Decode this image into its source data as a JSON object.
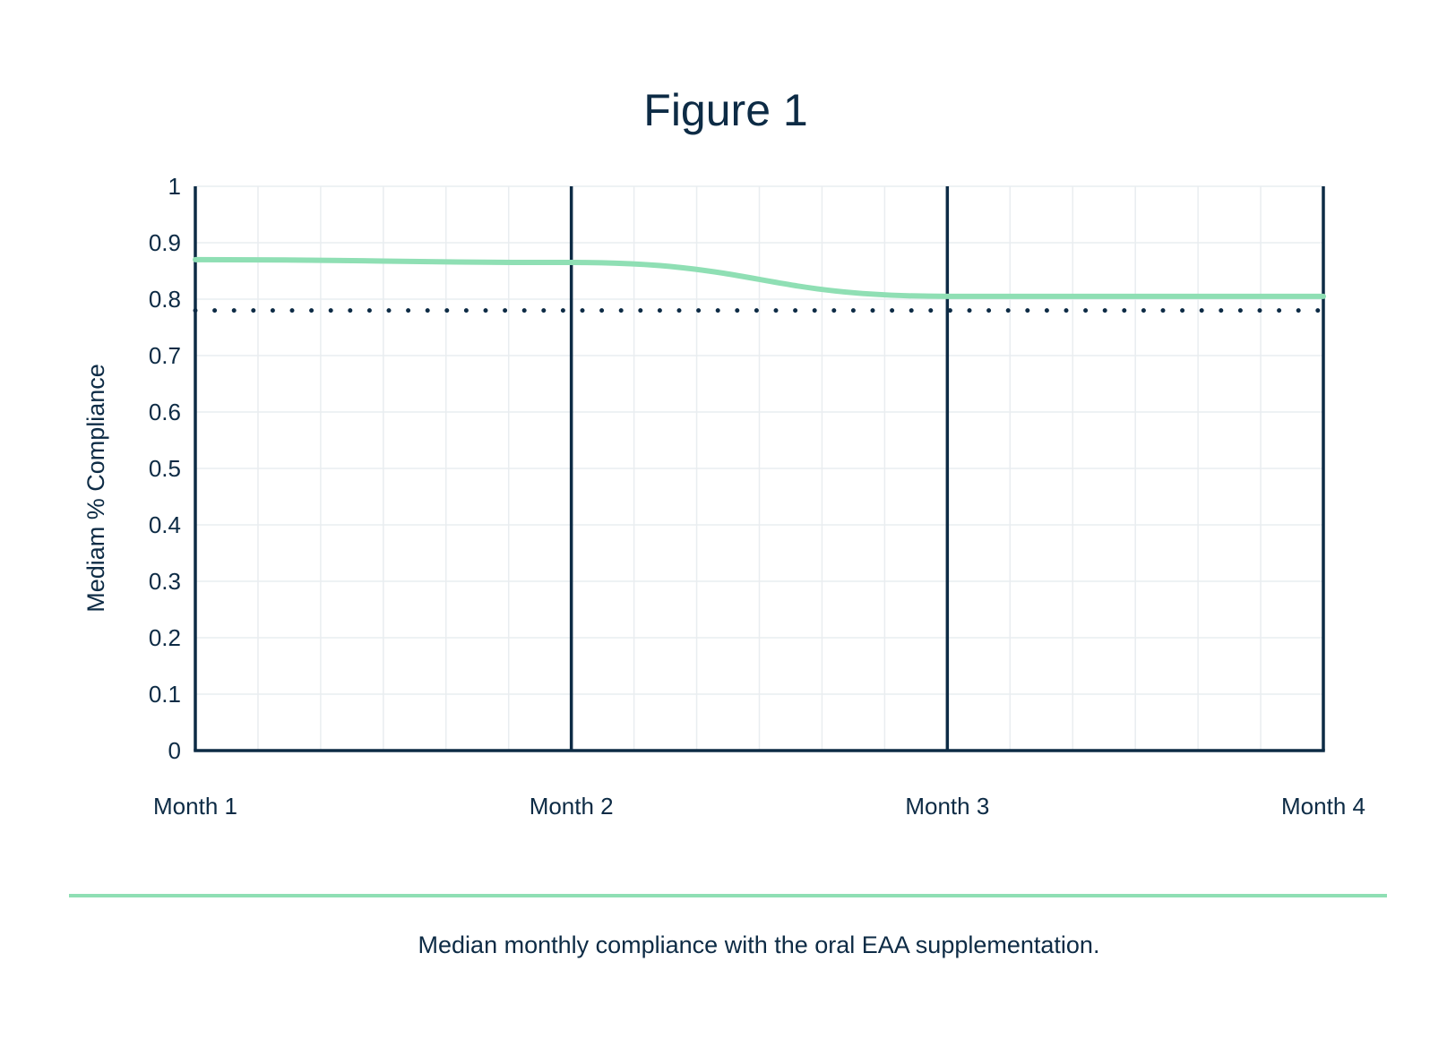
{
  "colors": {
    "text": "#0d2b45",
    "axis": "#0d2b45",
    "grid": "#e9edf0",
    "series": "#8fdfb4",
    "reference": "#0d2b45",
    "rule": "#8fdfb4"
  },
  "caption": "Median monthly compliance with the oral EAA supplementation.",
  "chart_data": {
    "type": "line",
    "title": "Figure 1",
    "xlabel": "",
    "ylabel": "Mediam % Compliance",
    "x_categories": [
      "Month 1",
      "Month 2",
      "Month 3",
      "Month 4"
    ],
    "yticks": [
      "0",
      "0.1",
      "0.2",
      "0.3",
      "0.4",
      "0.5",
      "0.6",
      "0.7",
      "0.8",
      "0.9",
      "1"
    ],
    "ylim": [
      0,
      1
    ],
    "grid": true,
    "minor_divisions_per_month": 6,
    "series": [
      {
        "values": [
          0.87,
          0.865,
          0.805,
          0.805
        ],
        "style": "solid",
        "smooth": true
      }
    ],
    "reference_lines": [
      {
        "y": 0.78,
        "style": "dotted"
      }
    ]
  }
}
